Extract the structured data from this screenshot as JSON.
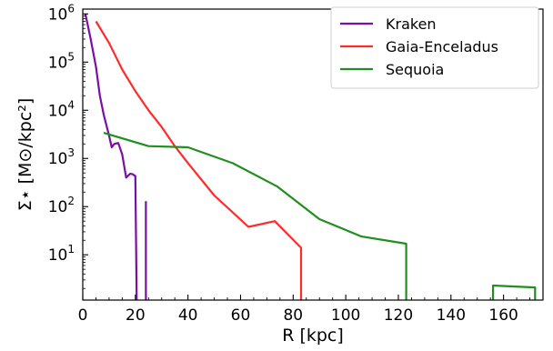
{
  "chart_data": {
    "type": "line",
    "xlabel": "R [kpc]",
    "ylabel": "Σ⋆ [M⊙/kpc²]",
    "xlim": [
      0,
      175
    ],
    "ylim_log10": [
      0.06,
      6.1
    ],
    "yscale": "log",
    "x_ticks": [
      0,
      20,
      40,
      60,
      80,
      100,
      120,
      140,
      160
    ],
    "y_ticks": [
      {
        "exp": 1,
        "label_base": "10",
        "label_exp": "1"
      },
      {
        "exp": 2,
        "label_base": "10",
        "label_exp": "2"
      },
      {
        "exp": 3,
        "label_base": "10",
        "label_exp": "3"
      },
      {
        "exp": 4,
        "label_base": "10",
        "label_exp": "4"
      },
      {
        "exp": 5,
        "label_base": "10",
        "label_exp": "5"
      },
      {
        "exp": 6,
        "label_base": "10",
        "label_exp": "6"
      }
    ],
    "grid": false,
    "legend_position": "top-right",
    "series": [
      {
        "name": "Kraken",
        "color": "#7b0fa3",
        "segments": [
          [
            [
              1,
              1000000
            ],
            [
              3,
              300000
            ],
            [
              5,
              80000
            ],
            [
              6.5,
              20000
            ],
            [
              8,
              8000
            ],
            [
              10,
              3000
            ],
            [
              11,
              1700
            ],
            [
              12,
              2000
            ],
            [
              13.5,
              2100
            ],
            [
              15,
              1200
            ],
            [
              16.5,
              400
            ],
            [
              18,
              480
            ],
            [
              19,
              470
            ],
            [
              20,
              430
            ],
            [
              20.5,
              1
            ]
          ],
          [
            [
              24,
              130
            ],
            [
              24,
              1
            ]
          ]
        ]
      },
      {
        "name": "Gaia-Enceladus",
        "color": "#ff2a2a",
        "segments": [
          [
            [
              5,
              700000
            ],
            [
              10,
              250000
            ],
            [
              15,
              70000
            ],
            [
              20,
              25000
            ],
            [
              25,
              10000
            ],
            [
              30,
              4500
            ],
            [
              35,
              1800
            ],
            [
              40,
              800
            ],
            [
              50,
              170
            ],
            [
              63,
              38
            ],
            [
              73,
              50
            ],
            [
              83,
              14
            ],
            [
              83,
              1
            ]
          ]
        ]
      },
      {
        "name": "Sequoia",
        "color": "#1f8f1f",
        "segments": [
          [
            [
              8,
              3400
            ],
            [
              25,
              1800
            ],
            [
              40,
              1700
            ],
            [
              57,
              800
            ],
            [
              74,
              260
            ],
            [
              90,
              55
            ],
            [
              106,
              24
            ],
            [
              123,
              17
            ],
            [
              123,
              1
            ]
          ],
          [
            [
              156,
              1
            ],
            [
              156,
              2.3
            ],
            [
              172,
              2.1
            ],
            [
              172,
              1
            ]
          ]
        ]
      }
    ]
  }
}
